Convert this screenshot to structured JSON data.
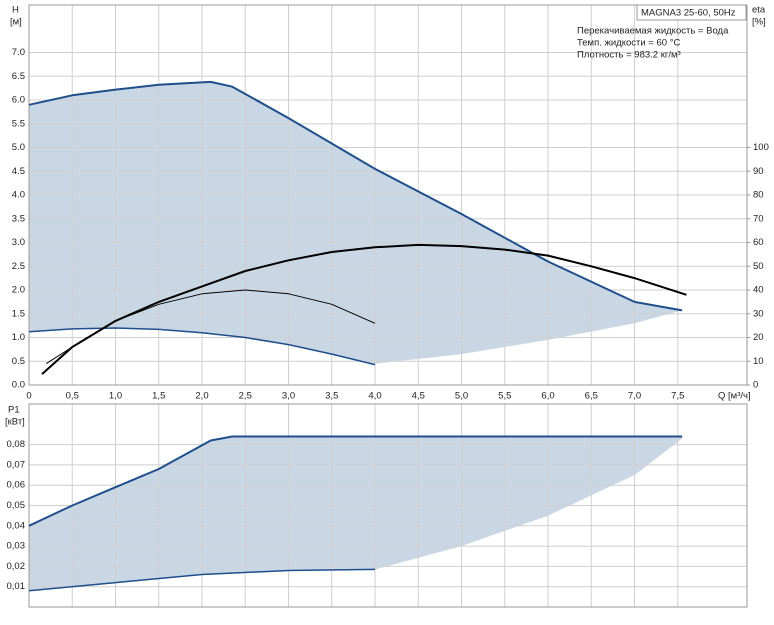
{
  "chart_data": [
    {
      "type": "line",
      "title": "MAGNA3 25-60, 50Hz",
      "annotations": [
        "Перекачиваемая жидкость = Вода",
        "Темп. жидкости = 60 °C",
        "Плотность = 983.2 кг/м³"
      ],
      "y_label": "H",
      "y_unit": "[м]",
      "y2_label": "eta",
      "y2_unit": "[%]",
      "x_label": "Q [м³/ч]",
      "xlim": [
        0,
        8.3
      ],
      "ylim": [
        0,
        8
      ],
      "y2lim": [
        0,
        160
      ],
      "xticks": [
        0,
        {
          "value": 0.5,
          "label": "0,5"
        },
        {
          "value": 1,
          "label": "1,0"
        },
        {
          "value": 1.5,
          "label": "1,5"
        },
        {
          "value": 2,
          "label": "2,0"
        },
        {
          "value": 2.5,
          "label": "2,5"
        },
        {
          "value": 3,
          "label": "3,0"
        },
        {
          "value": 3.5,
          "label": "3,5"
        },
        {
          "value": 4,
          "label": "4,0"
        },
        {
          "value": 4.5,
          "label": "4,5"
        },
        {
          "value": 5,
          "label": "5,0"
        },
        {
          "value": 5.5,
          "label": "5,5"
        },
        {
          "value": 6,
          "label": "6,0"
        },
        {
          "value": 6.5,
          "label": "6,5"
        },
        {
          "value": 7,
          "label": "7,0"
        },
        {
          "value": 7.5,
          "label": "7,5"
        }
      ],
      "yticks": [
        {
          "value": 0,
          "label": "0.0"
        },
        0.5,
        {
          "value": 1,
          "label": "1.0"
        },
        1.5,
        {
          "value": 2,
          "label": "2.0"
        },
        2.5,
        {
          "value": 3,
          "label": "3.0"
        },
        3.5,
        {
          "value": 4,
          "label": "4.0"
        },
        4.5,
        {
          "value": 5,
          "label": "5.0"
        },
        5.5,
        {
          "value": 6,
          "label": "6.0"
        },
        6.5,
        {
          "value": 7,
          "label": "7.0"
        }
      ],
      "y2ticks": [
        0,
        10,
        20,
        30,
        40,
        50,
        60,
        70,
        80,
        90,
        100
      ],
      "grid": true,
      "fill": {
        "color": "#c9d7e4",
        "x": [
          4,
          5,
          6,
          7,
          7.55
        ],
        "values": [
          0.45,
          0.65,
          0.95,
          1.3,
          1.57
        ]
      },
      "series": [
        {
          "color": "#1f4e8c",
          "width": 2,
          "x": [
            0,
            0.5,
            1,
            1.5,
            2.1,
            2.35,
            3,
            4,
            5,
            6,
            7,
            7.55
          ],
          "values": [
            5.9,
            6.1,
            6.22,
            6.32,
            6.38,
            6.28,
            5.62,
            4.55,
            3.6,
            2.6,
            1.75,
            1.57
          ]
        },
        {
          "color": "#1f4e8c",
          "width": 1.5,
          "x": [
            0,
            0.5,
            1,
            1.5,
            2,
            2.5,
            3,
            3.5,
            4
          ],
          "values": [
            1.12,
            1.18,
            1.2,
            1.17,
            1.1,
            1.0,
            0.85,
            0.65,
            0.43
          ]
        },
        {
          "color": "#000000",
          "width": 1,
          "x": [
            0.2,
            0.5,
            1,
            1.5,
            2,
            2.5,
            3,
            3.5,
            4
          ],
          "values": [
            0.45,
            0.8,
            1.35,
            1.7,
            1.92,
            2.0,
            1.92,
            1.7,
            1.3
          ]
        },
        {
          "color": "#000000",
          "width": 2,
          "axis": "y2",
          "x": [
            0.15,
            0.5,
            1,
            1.5,
            2,
            2.5,
            3,
            3.5,
            4,
            4.5,
            5,
            5.5,
            6,
            6.5,
            7,
            7.6
          ],
          "values": [
            4.6,
            16,
            27,
            35,
            41.5,
            48,
            52.5,
            56,
            58,
            59,
            58.5,
            57,
            54.5,
            50,
            45,
            38
          ]
        }
      ]
    },
    {
      "type": "line",
      "y_label": "P1",
      "y_unit": "[кВт]",
      "xlim": [
        0,
        8.3
      ],
      "ylim": [
        0,
        0.1
      ],
      "xgrid": [
        0,
        0.5,
        1,
        1.5,
        2,
        2.5,
        3,
        3.5,
        4,
        4.5,
        5,
        5.5,
        6,
        6.5,
        7,
        7.5
      ],
      "yticks": [
        {
          "value": 0.01,
          "label": "0,01"
        },
        {
          "value": 0.02,
          "label": "0,02"
        },
        {
          "value": 0.03,
          "label": "0,03"
        },
        {
          "value": 0.04,
          "label": "0,04"
        },
        {
          "value": 0.05,
          "label": "0,05"
        },
        {
          "value": 0.06,
          "label": "0,06"
        },
        {
          "value": 0.07,
          "label": "0,07"
        },
        {
          "value": 0.08,
          "label": "0,08"
        }
      ],
      "grid": true,
      "fill": {
        "color": "#c9d7e4",
        "x": [
          4,
          5,
          6,
          7,
          7.55
        ],
        "values": [
          0.0185,
          0.03,
          0.045,
          0.065,
          0.083
        ]
      },
      "series": [
        {
          "color": "#1f4e8c",
          "width": 2,
          "x": [
            0,
            0.25,
            0.5,
            1,
            1.5,
            2.1,
            2.35,
            7.55
          ],
          "values": [
            0.04,
            0.045,
            0.05,
            0.059,
            0.068,
            0.082,
            0.084,
            0.084
          ]
        },
        {
          "color": "#1f4e8c",
          "width": 1.5,
          "x": [
            0,
            1,
            2,
            3,
            4
          ],
          "values": [
            0.008,
            0.012,
            0.016,
            0.018,
            0.0185
          ]
        }
      ]
    }
  ]
}
